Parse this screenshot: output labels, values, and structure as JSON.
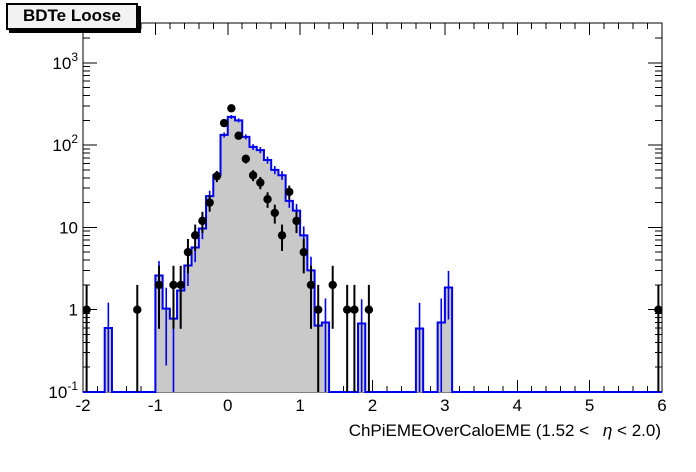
{
  "title_box": {
    "label": "BDTe Loose"
  },
  "chart_data": {
    "type": "histogram",
    "title": "BDTe Loose",
    "xlabel_full": "ChPiEMEOverCaloEME (1.52 <  η < 2.0)",
    "xlabel_parts": [
      "ChPiEMEOverCaloEME (1.52 < ",
      "η",
      " < 2.0)"
    ],
    "xlim": [
      -2,
      6
    ],
    "ylog": true,
    "ylim": [
      0.1,
      3000
    ],
    "grid": false,
    "legend": "none",
    "x_ticks": [
      -2,
      -1,
      0,
      1,
      2,
      3,
      4,
      5,
      6
    ],
    "x_minor_tick_step": 0.2,
    "y_tick_labels": [
      {
        "v": 1000,
        "base": "10",
        "exp": "3"
      },
      {
        "v": 100,
        "base": "10",
        "exp": "2"
      },
      {
        "v": 10,
        "base": "10",
        "exp": ""
      },
      {
        "v": 1,
        "base": "1",
        "exp": ""
      },
      {
        "v": 0.1,
        "base": "10",
        "exp": "-1"
      }
    ],
    "bin_width": 0.1,
    "mc_hist": {
      "style": "filled-steps-with-errors",
      "line_color": "#0000f0",
      "fill_color": "#c9c9c9",
      "bins": [
        {
          "x": -1.7,
          "v": 0.6,
          "e": 0.62
        },
        {
          "x": -1.0,
          "v": 2.6,
          "e": 1.3
        },
        {
          "x": -0.9,
          "v": 1.03,
          "e": 0.82
        },
        {
          "x": -0.8,
          "v": 0.78,
          "e": 0.71
        },
        {
          "x": -0.7,
          "v": 1.71,
          "e": 1.05
        },
        {
          "x": -0.6,
          "v": 3.44,
          "e": 1.5
        },
        {
          "x": -0.5,
          "v": 5.7,
          "e": 1.92
        },
        {
          "x": -0.4,
          "v": 9.7,
          "e": 2.51
        },
        {
          "x": -0.3,
          "v": 24,
          "e": 3.95
        },
        {
          "x": -0.2,
          "v": 43,
          "e": 5.29
        },
        {
          "x": -0.1,
          "v": 133,
          "e": 9.3
        },
        {
          "x": 0.0,
          "v": 220,
          "e": 12.0
        },
        {
          "x": 0.1,
          "v": 200,
          "e": 11.4
        },
        {
          "x": 0.2,
          "v": 126,
          "e": 9.05
        },
        {
          "x": 0.3,
          "v": 95,
          "e": 7.86
        },
        {
          "x": 0.4,
          "v": 87,
          "e": 7.52
        },
        {
          "x": 0.5,
          "v": 66,
          "e": 6.55
        },
        {
          "x": 0.6,
          "v": 50,
          "e": 5.7
        },
        {
          "x": 0.7,
          "v": 43,
          "e": 5.29
        },
        {
          "x": 0.8,
          "v": 21,
          "e": 3.69
        },
        {
          "x": 0.9,
          "v": 16,
          "e": 3.22
        },
        {
          "x": 1.0,
          "v": 8.0,
          "e": 2.28
        },
        {
          "x": 1.1,
          "v": 3.0,
          "e": 1.4
        },
        {
          "x": 1.2,
          "v": 0.64,
          "e": 0.64
        },
        {
          "x": 1.3,
          "v": 0.7,
          "e": 0.67
        },
        {
          "x": 1.8,
          "v": 0.68,
          "e": 0.66
        },
        {
          "x": 2.6,
          "v": 0.59,
          "e": 0.62
        },
        {
          "x": 2.9,
          "v": 0.7,
          "e": 0.67
        },
        {
          "x": 3.0,
          "v": 1.86,
          "e": 1.1
        }
      ]
    },
    "data_points": {
      "marker": "filled-circle",
      "color": "#000000",
      "points": [
        {
          "x": -1.95,
          "n": 1
        },
        {
          "x": -1.25,
          "n": 1
        },
        {
          "x": -0.95,
          "n": 2
        },
        {
          "x": -0.75,
          "n": 2
        },
        {
          "x": -0.65,
          "n": 2
        },
        {
          "x": -0.55,
          "n": 5
        },
        {
          "x": -0.45,
          "n": 8
        },
        {
          "x": -0.35,
          "n": 12
        },
        {
          "x": -0.25,
          "n": 20
        },
        {
          "x": -0.15,
          "n": 42
        },
        {
          "x": -0.05,
          "n": 185
        },
        {
          "x": 0.05,
          "n": 280
        },
        {
          "x": 0.15,
          "n": 130
        },
        {
          "x": 0.25,
          "n": 68
        },
        {
          "x": 0.35,
          "n": 43
        },
        {
          "x": 0.45,
          "n": 35
        },
        {
          "x": 0.55,
          "n": 22
        },
        {
          "x": 0.65,
          "n": 15
        },
        {
          "x": 0.75,
          "n": 8
        },
        {
          "x": 0.85,
          "n": 27
        },
        {
          "x": 0.95,
          "n": 12
        },
        {
          "x": 1.05,
          "n": 5
        },
        {
          "x": 1.15,
          "n": 2
        },
        {
          "x": 1.25,
          "n": 1
        },
        {
          "x": 1.45,
          "n": 2
        },
        {
          "x": 1.65,
          "n": 1
        },
        {
          "x": 1.75,
          "n": 1
        },
        {
          "x": 1.95,
          "n": 1
        },
        {
          "x": 5.95,
          "n": 1
        }
      ]
    },
    "colors": {
      "frame": "#000000",
      "background": "#ffffff",
      "hist_fill": "#c9c9c9",
      "hist_line": "#0000f0",
      "points": "#000000"
    }
  }
}
